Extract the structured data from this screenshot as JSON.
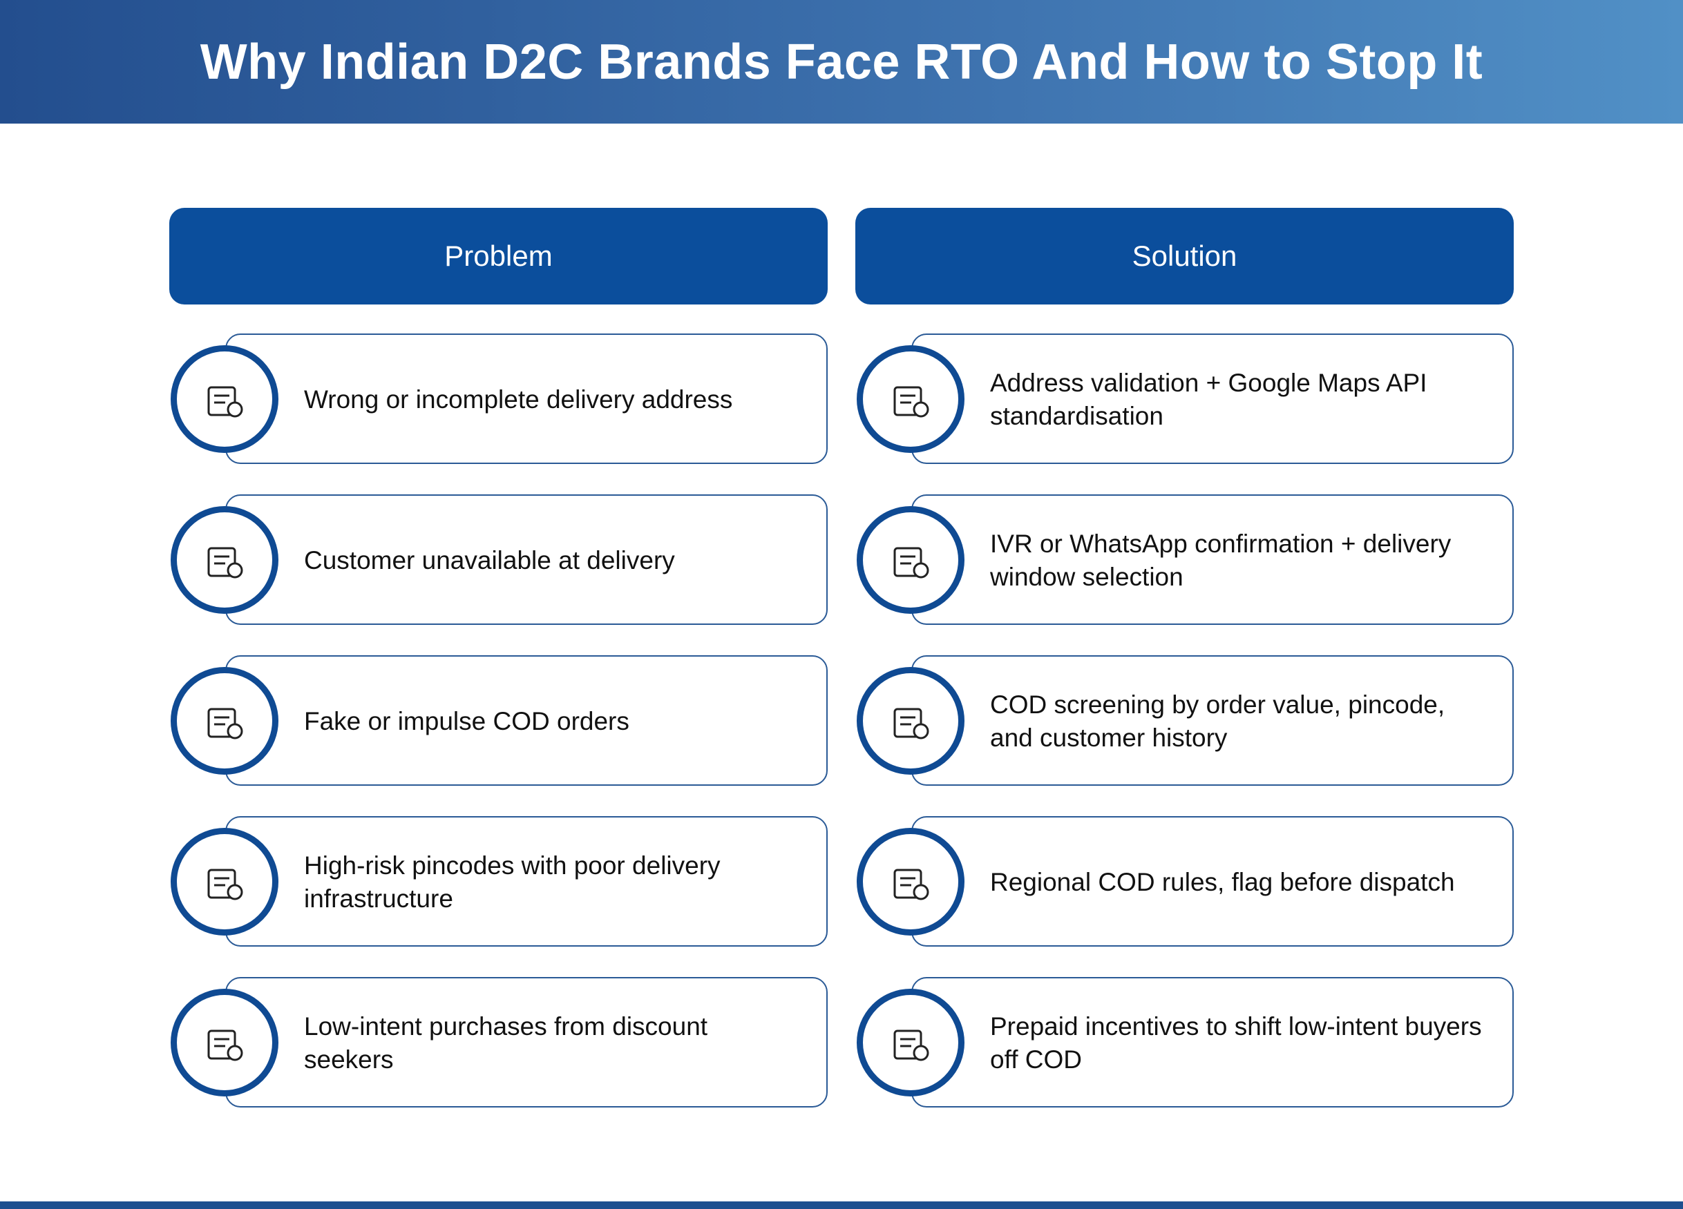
{
  "header": {
    "title": "Why Indian D2C Brands Face RTO And How to Stop It"
  },
  "columns": [
    {
      "heading": "Problem",
      "items": [
        "Wrong or incomplete delivery address",
        "Customer unavailable at delivery",
        "Fake or impulse COD orders",
        "High-risk pincodes with poor delivery infrastructure",
        "Low-intent purchases from discount seekers"
      ]
    },
    {
      "heading": "Solution",
      "items": [
        "Address validation + Google Maps API standardisation",
        "IVR or WhatsApp confirmation + delivery window selection",
        "COD screening by order value, pincode, and customer history",
        "Regional COD rules, flag before dispatch",
        "Prepaid incentives to shift low-intent buyers off COD"
      ]
    }
  ]
}
